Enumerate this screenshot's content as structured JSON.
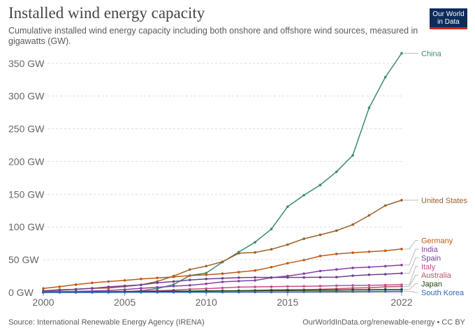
{
  "header": {
    "title": "Installed wind energy capacity",
    "subtitle": "Cumulative installed wind energy capacity including both onshore and offshore wind sources, measured in gigawatts (GW).",
    "logo_line1": "Our World",
    "logo_line2": "in Data"
  },
  "footer": {
    "source": "Source: International Renewable Energy Agency (IRENA)",
    "credit": "OurWorldInData.org/renewable-energy • CC BY"
  },
  "chart_data": {
    "type": "line",
    "title": "Installed wind energy capacity",
    "subtitle": "Cumulative installed wind energy capacity including both onshore and offshore wind sources, measured in gigawatts (GW).",
    "xlabel": "",
    "ylabel": "",
    "xlim": [
      2000,
      2022
    ],
    "ylim": [
      0,
      370
    ],
    "grid": "horizontal dashed",
    "legend": "right, line-end labels",
    "x_ticks": [
      "2000",
      "2005",
      "2010",
      "2015",
      "2022"
    ],
    "x_tick_values": [
      2000,
      2005,
      2010,
      2015,
      2022
    ],
    "y_ticks": [
      "0 GW",
      "50 GW",
      "100 GW",
      "150 GW",
      "200 GW",
      "250 GW",
      "300 GW",
      "350 GW"
    ],
    "y_tick_values": [
      0,
      50,
      100,
      150,
      200,
      250,
      300,
      350
    ],
    "x": [
      2000,
      2001,
      2002,
      2003,
      2004,
      2005,
      2006,
      2007,
      2008,
      2009,
      2010,
      2011,
      2012,
      2013,
      2014,
      2015,
      2016,
      2017,
      2018,
      2019,
      2020,
      2021,
      2022
    ],
    "series": [
      {
        "name": "China",
        "color": "#3a8a70",
        "values": [
          0.3,
          0.4,
          0.5,
          0.6,
          0.8,
          1.3,
          2.6,
          5.9,
          12.0,
          25.8,
          29.6,
          46.4,
          61.6,
          76.7,
          96.8,
          131.0,
          148.6,
          164.1,
          184.3,
          209.5,
          282.0,
          328.9,
          365.4
        ]
      },
      {
        "name": "United States",
        "color": "#9a6229",
        "values": [
          2.4,
          4.2,
          4.7,
          6.4,
          6.7,
          9.1,
          11.6,
          16.8,
          25.0,
          35.0,
          40.2,
          46.9,
          59.9,
          61.1,
          65.9,
          73.0,
          82.0,
          88.0,
          94.4,
          103.6,
          117.7,
          132.7,
          140.9
        ]
      },
      {
        "name": "Germany",
        "color": "#be5915",
        "values": [
          6.1,
          8.7,
          11.9,
          14.6,
          16.6,
          18.4,
          20.6,
          22.2,
          23.8,
          25.7,
          26.9,
          28.7,
          31.0,
          33.5,
          38.6,
          44.6,
          49.4,
          55.6,
          58.8,
          60.7,
          62.2,
          63.7,
          66.3
        ]
      },
      {
        "name": "India",
        "color": "#883fa8",
        "values": [
          1.2,
          1.5,
          1.7,
          2.1,
          3.0,
          4.4,
          6.3,
          7.8,
          9.6,
          10.9,
          13.2,
          16.1,
          17.3,
          18.4,
          22.5,
          25.1,
          28.7,
          32.8,
          35.1,
          37.5,
          38.6,
          40.1,
          41.9
        ]
      },
      {
        "name": "Spain",
        "color": "#6d3e91",
        "values": [
          2.2,
          3.4,
          4.9,
          6.2,
          8.5,
          10.0,
          11.6,
          14.8,
          16.6,
          19.1,
          20.6,
          21.5,
          22.6,
          22.9,
          22.9,
          22.9,
          22.9,
          23.1,
          23.4,
          25.6,
          27.0,
          27.8,
          29.3
        ]
      },
      {
        "name": "Italy",
        "color": "#c64b93",
        "values": [
          0.4,
          0.7,
          0.8,
          0.9,
          1.1,
          1.6,
          1.9,
          2.7,
          3.5,
          4.9,
          5.8,
          6.9,
          8.1,
          8.5,
          8.7,
          9.2,
          9.4,
          9.7,
          10.3,
          10.7,
          10.9,
          11.3,
          11.8
        ]
      },
      {
        "name": "Australia",
        "color": "#c15065",
        "values": [
          0.03,
          0.07,
          0.1,
          0.2,
          0.4,
          0.7,
          0.8,
          0.8,
          1.3,
          1.7,
          1.9,
          2.2,
          2.6,
          3.2,
          3.8,
          4.2,
          4.3,
          4.8,
          5.7,
          6.7,
          7.3,
          8.5,
          9.1
        ]
      },
      {
        "name": "Japan",
        "color": "#18470f",
        "values": [
          0.1,
          0.3,
          0.4,
          0.6,
          0.9,
          1.1,
          1.4,
          1.5,
          1.8,
          2.0,
          2.3,
          2.4,
          2.6,
          2.7,
          2.8,
          3.0,
          3.2,
          3.4,
          3.6,
          3.9,
          4.2,
          4.5,
          4.6
        ]
      },
      {
        "name": "South Korea",
        "color": "#286bbb",
        "values": [
          0.0,
          0.0,
          0.01,
          0.02,
          0.05,
          0.1,
          0.2,
          0.2,
          0.3,
          0.35,
          0.38,
          0.4,
          0.5,
          0.6,
          0.6,
          0.8,
          1.0,
          1.2,
          1.3,
          1.5,
          1.6,
          1.7,
          1.9
        ]
      }
    ]
  }
}
